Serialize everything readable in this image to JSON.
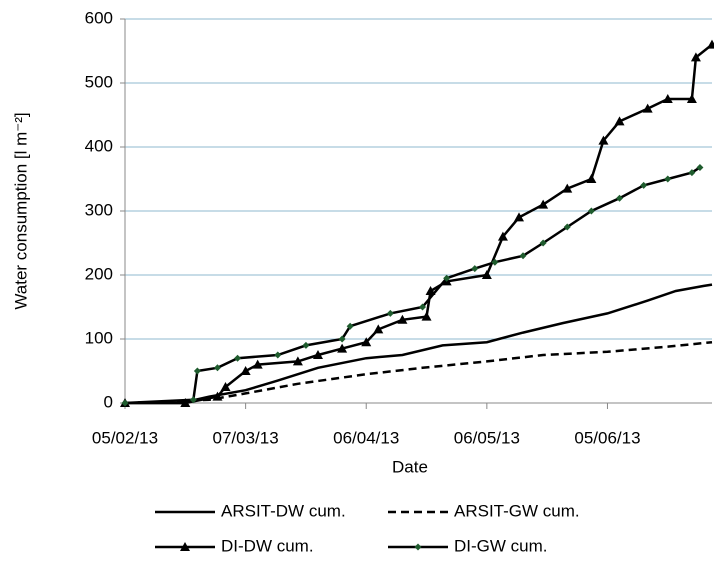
{
  "chart_data": {
    "type": "line",
    "ylabel": "Water consumption [l m⁻²]",
    "xlabel": "Date",
    "xlim": [
      "05/02/13",
      "01/07/13"
    ],
    "xticks": [
      "05/02/13",
      "07/03/13",
      "06/04/13",
      "06/05/13",
      "05/06/13"
    ],
    "ylim": [
      0,
      600
    ],
    "yticks": [
      0,
      100,
      200,
      300,
      400,
      500,
      600
    ],
    "grid": true,
    "legend": "bottom",
    "series": [
      {
        "name": "ARSIT-DW cum.",
        "color": "#000000",
        "dash": false,
        "marker": "none",
        "x": [
          "05/02/13",
          "19/02/13",
          "26/02/13",
          "07/03/13",
          "15/03/13",
          "25/03/13",
          "06/04/13",
          "15/04/13",
          "25/04/13",
          "06/05/13",
          "15/05/13",
          "25/05/13",
          "05/06/13",
          "15/06/13",
          "22/06/13",
          "29/06/13",
          "01/07/13"
        ],
        "values": [
          0,
          0,
          10,
          20,
          35,
          55,
          70,
          75,
          90,
          95,
          110,
          125,
          140,
          160,
          175,
          183,
          185
        ]
      },
      {
        "name": "ARSIT-GW cum.",
        "color": "#000000",
        "dash": true,
        "marker": "none",
        "x": [
          "05/02/13",
          "26/02/13",
          "07/03/13",
          "20/03/13",
          "06/04/13",
          "20/04/13",
          "06/05/13",
          "20/05/13",
          "05/06/13",
          "20/06/13",
          "01/07/13"
        ],
        "values": [
          0,
          5,
          15,
          30,
          45,
          55,
          65,
          75,
          80,
          88,
          95
        ]
      },
      {
        "name": "DI-DW cum.",
        "color": "#000000",
        "dash": false,
        "marker": "triangle",
        "x": [
          "05/02/13",
          "20/02/13",
          "28/02/13",
          "02/03/13",
          "07/03/13",
          "10/03/13",
          "20/03/13",
          "25/03/13",
          "31/03/13",
          "06/04/13",
          "09/04/13",
          "15/04/13",
          "21/04/13",
          "22/04/13",
          "26/04/13",
          "06/05/13",
          "10/05/13",
          "14/05/13",
          "20/05/13",
          "26/05/13",
          "01/06/13",
          "04/06/13",
          "08/06/13",
          "15/06/13",
          "20/06/13",
          "26/06/13",
          "27/06/13",
          "01/07/13"
        ],
        "values": [
          0,
          0,
          10,
          25,
          50,
          60,
          65,
          75,
          85,
          95,
          115,
          130,
          135,
          175,
          190,
          200,
          260,
          290,
          310,
          335,
          350,
          410,
          440,
          460,
          475,
          475,
          540,
          560
        ]
      },
      {
        "name": "DI-GW cum.",
        "color": "#000000",
        "marker_color": "#1f5c2e",
        "dash": false,
        "marker": "diamond",
        "x": [
          "05/02/13",
          "22/02/13",
          "23/02/13",
          "28/02/13",
          "05/03/13",
          "15/03/13",
          "22/03/13",
          "31/03/13",
          "02/04/13",
          "12/04/13",
          "20/04/13",
          "26/04/13",
          "03/05/13",
          "08/05/13",
          "15/05/13",
          "20/05/13",
          "26/05/13",
          "01/06/13",
          "08/06/13",
          "14/06/13",
          "20/06/13",
          "26/06/13",
          "28/06/13"
        ],
        "values": [
          0,
          5,
          50,
          55,
          70,
          75,
          90,
          100,
          120,
          140,
          150,
          195,
          210,
          220,
          230,
          250,
          275,
          300,
          320,
          340,
          350,
          360,
          368
        ]
      }
    ]
  }
}
